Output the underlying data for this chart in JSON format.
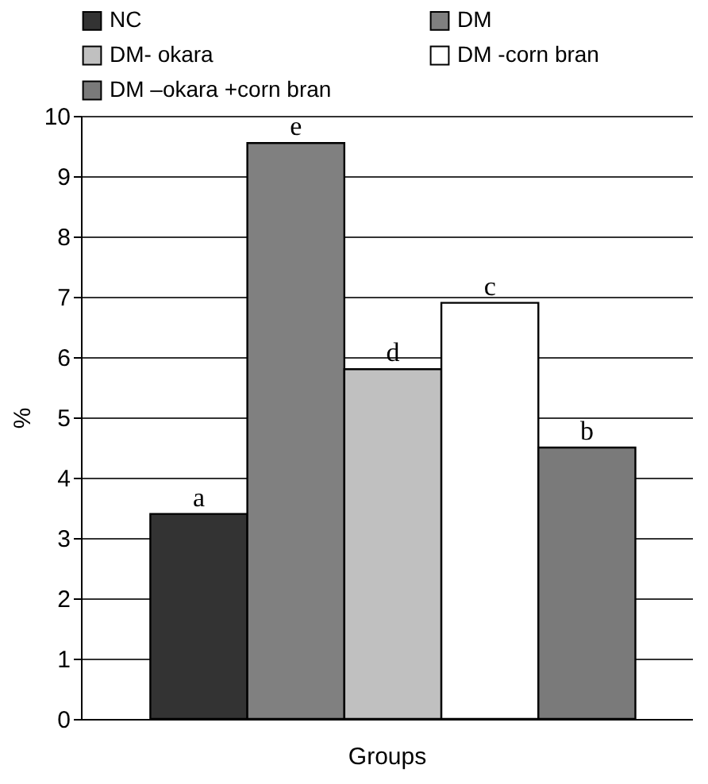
{
  "chart_data": {
    "type": "bar",
    "xlabel": "Groups",
    "ylabel": "%",
    "categories": [
      null
    ],
    "series": [
      {
        "name": "NC",
        "color": "#333333",
        "values": [
          3.4
        ],
        "value_labels": [
          "a"
        ]
      },
      {
        "name": "DM",
        "color": "#808080",
        "values": [
          9.55
        ],
        "value_labels": [
          "e"
        ]
      },
      {
        "name": "DM- okara",
        "color": "#c0c0c0",
        "values": [
          5.8
        ],
        "value_labels": [
          "d"
        ]
      },
      {
        "name": "DM -corn bran",
        "color": "#ffffff",
        "values": [
          6.9
        ],
        "value_labels": [
          "c"
        ]
      },
      {
        "name": "DM –okara +corn bran",
        "color": "#7a7a7a",
        "values": [
          4.5
        ],
        "value_labels": [
          "b"
        ]
      }
    ],
    "ylim": [
      0,
      10
    ],
    "yticks": [
      0,
      1,
      2,
      3,
      4,
      5,
      6,
      7,
      8,
      9,
      10
    ],
    "grid": "y",
    "legend": "top left"
  }
}
